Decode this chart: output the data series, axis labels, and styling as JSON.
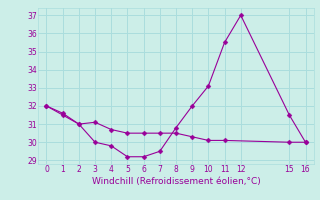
{
  "xlabel": "Windchill (Refroidissement éolien,°C)",
  "ylabel": "",
  "bg_color": "#cceee8",
  "grid_color": "#aadddd",
  "line_color": "#990099",
  "line1_x": [
    0,
    1,
    2,
    3,
    4,
    5,
    6,
    7,
    8,
    9,
    10,
    11,
    15,
    16
  ],
  "line1_y": [
    32.0,
    31.6,
    31.0,
    31.1,
    30.7,
    30.5,
    30.5,
    30.5,
    30.5,
    30.3,
    30.1,
    30.1,
    30.0,
    30.0
  ],
  "line2_x": [
    0,
    1,
    2,
    3,
    4,
    5,
    6,
    7,
    8,
    9,
    10,
    11,
    12,
    15,
    16
  ],
  "line2_y": [
    32.0,
    31.5,
    31.0,
    30.0,
    29.8,
    29.2,
    29.2,
    29.5,
    30.8,
    32.0,
    33.1,
    35.5,
    37.0,
    31.5,
    30.0
  ],
  "ylim": [
    28.8,
    37.4
  ],
  "xlim": [
    -0.5,
    16.5
  ],
  "yticks": [
    29,
    30,
    31,
    32,
    33,
    34,
    35,
    36,
    37
  ],
  "xticks": [
    0,
    1,
    2,
    3,
    4,
    5,
    6,
    7,
    8,
    9,
    10,
    11,
    12,
    15,
    16
  ],
  "marker": "D",
  "markersize": 2.5,
  "linewidth": 0.8,
  "tick_labelsize": 5.5,
  "xlabel_fontsize": 6.5
}
